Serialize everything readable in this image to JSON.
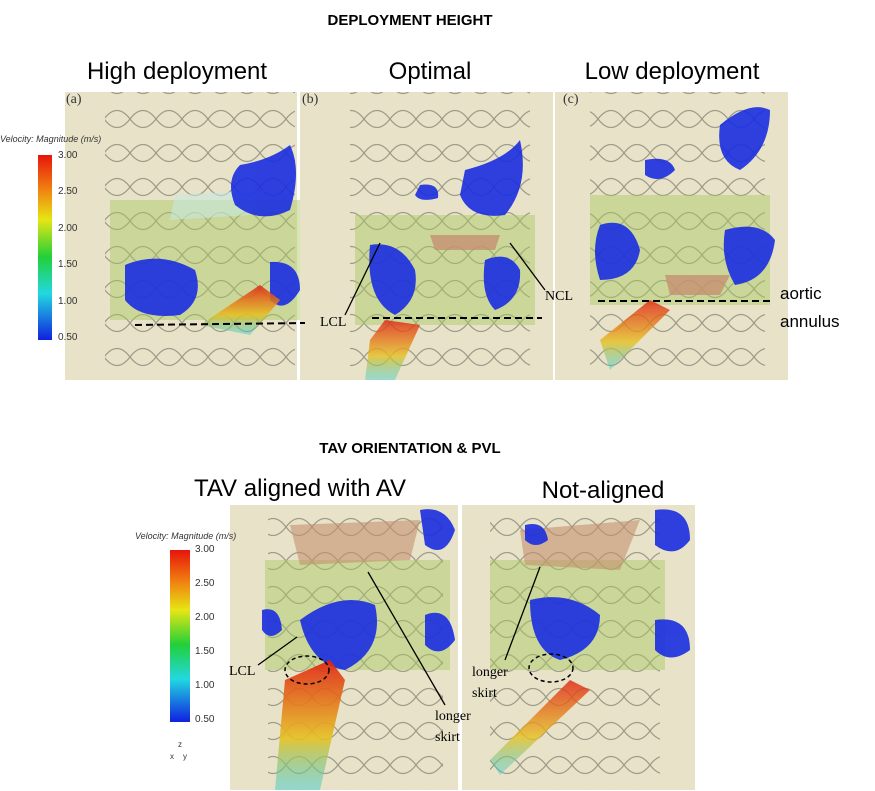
{
  "sections": [
    {
      "title": "DEPLOYMENT HEIGHT",
      "panels": [
        {
          "heading": "High deployment",
          "letter": "(a)"
        },
        {
          "heading": "Optimal",
          "letter": "(b)"
        },
        {
          "heading": "Low deployment",
          "letter": "(c)"
        }
      ],
      "colorbar": {
        "label": "Velocity: Magnitude (m/s)",
        "ticks": [
          "3.00",
          "2.50",
          "2.00",
          "1.50",
          "1.00",
          "0.50"
        ]
      },
      "annotations": [
        "LCL",
        "NCL",
        "aortic annulus"
      ]
    },
    {
      "title": "TAV ORIENTATION & PVL",
      "panels": [
        {
          "heading": "TAV aligned with AV"
        },
        {
          "heading": "Not-aligned"
        }
      ],
      "colorbar": {
        "label": "Velocity: Magnitude (m/s)",
        "ticks": [
          "3.00",
          "2.50",
          "2.00",
          "1.50",
          "1.00",
          "0.50"
        ]
      },
      "annotations": [
        "LCL",
        "longer skirt",
        "longer skirt"
      ],
      "axes": [
        "z",
        "x",
        "y"
      ]
    }
  ]
}
